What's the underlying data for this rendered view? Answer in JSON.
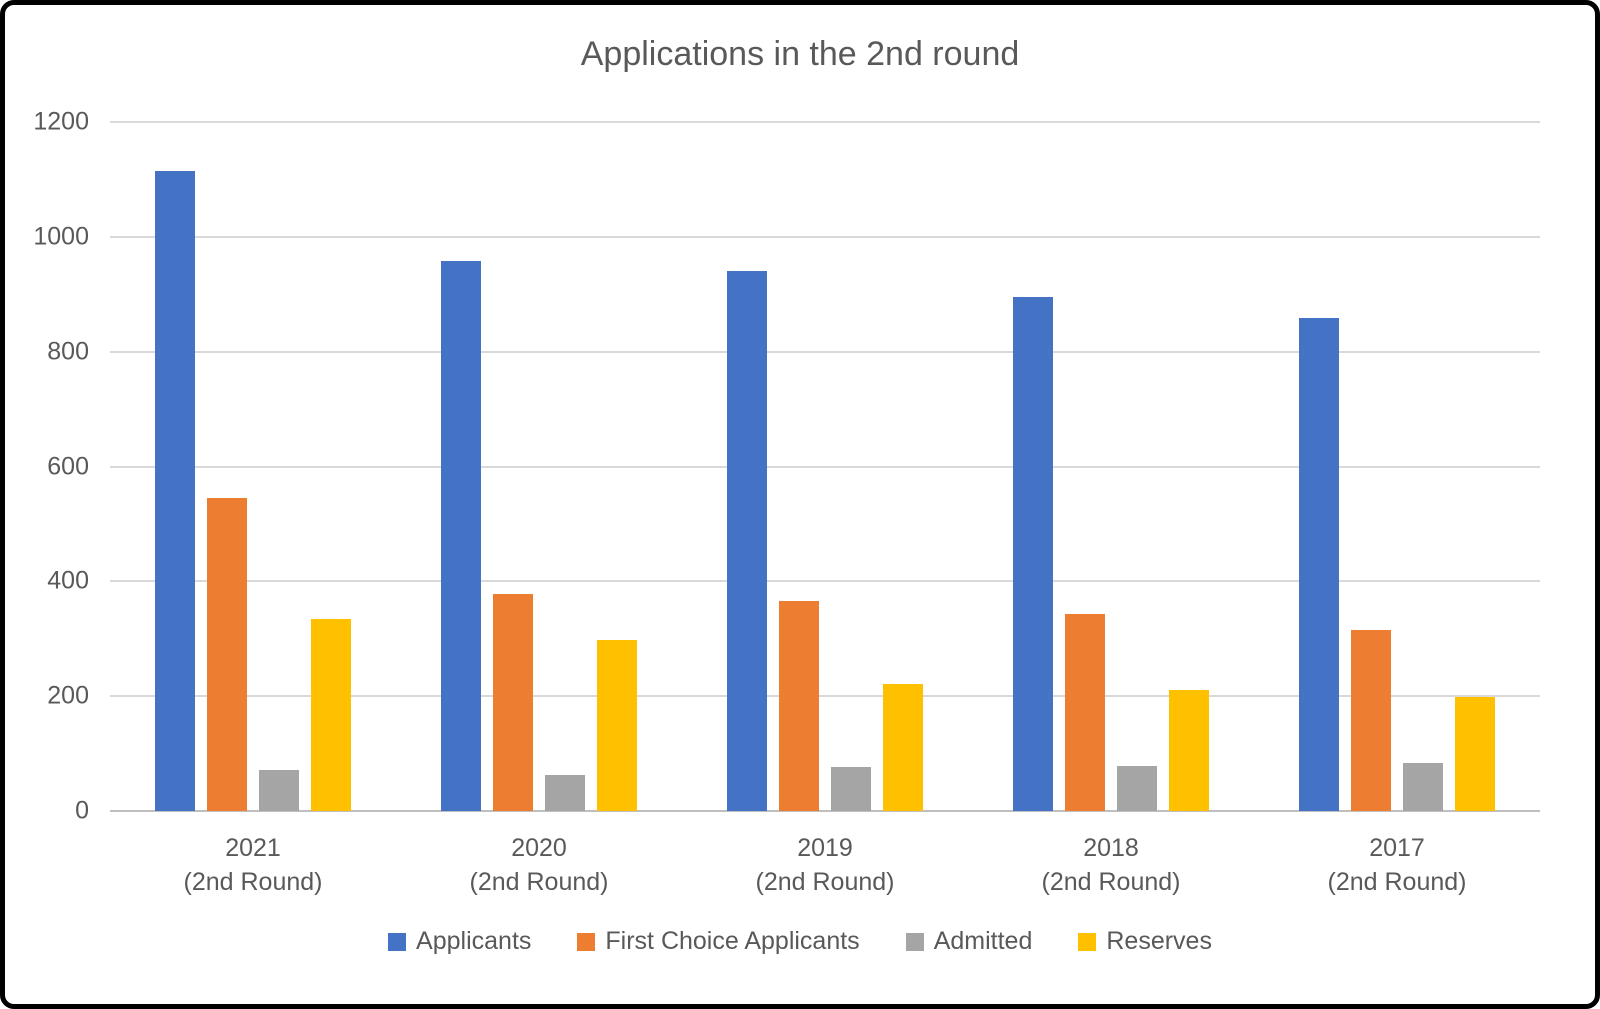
{
  "frame": {
    "background_color": "#ffffff",
    "border_color": "#000000"
  },
  "chart_data": {
    "type": "bar",
    "title": "Applications in the 2nd round",
    "categories": [
      "2021",
      "2020",
      "2019",
      "2018",
      "2017"
    ],
    "category_sublabel": "(2nd Round)",
    "ylim": [
      0,
      1200
    ],
    "yticks": [
      0,
      200,
      400,
      600,
      800,
      1000,
      1200
    ],
    "grid": true,
    "legend_position": "bottom",
    "text_color": "#595959",
    "gridline_color": "#D9D9D9",
    "axis_line_color": "#BFBFBF",
    "series": [
      {
        "name": "Applicants",
        "color": "#4472C4",
        "values": [
          1115,
          958,
          940,
          895,
          858
        ]
      },
      {
        "name": "First Choice Applicants",
        "color": "#ED7D31",
        "values": [
          545,
          378,
          366,
          344,
          315
        ]
      },
      {
        "name": "Admitted",
        "color": "#A5A5A5",
        "values": [
          72,
          62,
          77,
          79,
          84
        ]
      },
      {
        "name": "Reserves",
        "color": "#FFC000",
        "values": [
          335,
          298,
          222,
          211,
          198
        ]
      }
    ]
  }
}
